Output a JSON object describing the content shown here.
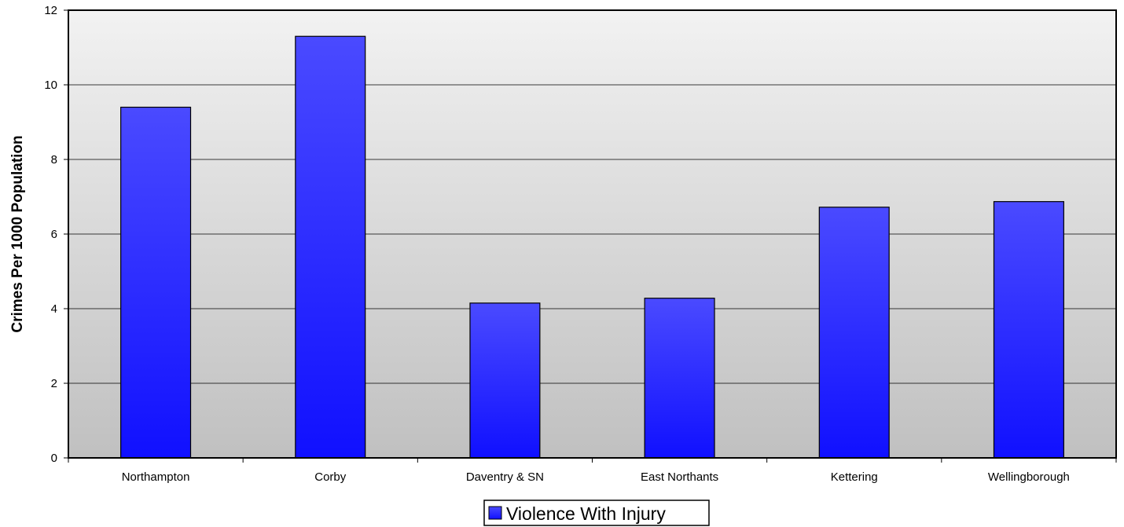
{
  "chart_data": {
    "type": "bar",
    "title": "",
    "xlabel": "",
    "ylabel": "Crimes Per 1000 Population",
    "ylim": [
      0,
      12
    ],
    "yticks": [
      0,
      2,
      4,
      6,
      8,
      10,
      12
    ],
    "grid": true,
    "legend_position": "bottom-center",
    "categories": [
      "Northampton",
      "Corby",
      "Daventry & SN",
      "East Northants",
      "Kettering",
      "Wellingborough"
    ],
    "series": [
      {
        "name": "Violence With Injury",
        "values": [
          9.4,
          11.3,
          4.15,
          4.28,
          6.72,
          6.87
        ]
      }
    ],
    "colors": {
      "bar_top": "#4a4aff",
      "bar_bottom": "#1010ff",
      "plot_bg_top": "#f2f2f2",
      "plot_bg_bottom": "#c0c0c0",
      "gridline": "#000000"
    }
  }
}
